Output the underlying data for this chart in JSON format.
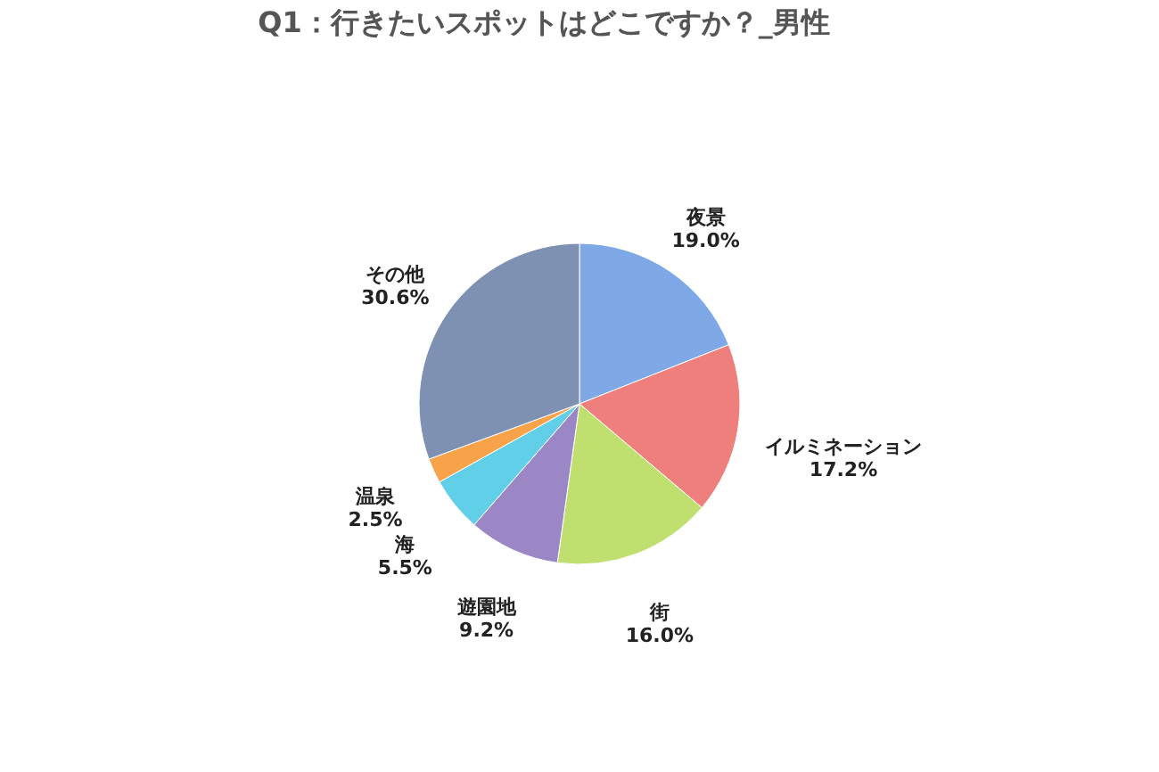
{
  "chart_data": {
    "type": "pie",
    "title": "Q1：行きたいスポットはどこですか？_男性",
    "categories": [
      "夜景",
      "イルミネーション",
      "街",
      "遊園地",
      "海",
      "温泉",
      "その他"
    ],
    "values": [
      19.0,
      17.2,
      16.0,
      9.2,
      5.5,
      2.5,
      30.6
    ],
    "value_labels": [
      "19.0%",
      "17.2%",
      "16.0%",
      "9.2%",
      "5.5%",
      "2.5%",
      "30.6%"
    ],
    "colors": [
      "#7ea9e6",
      "#ef7f7c",
      "#bfe06e",
      "#9b86c6",
      "#62cfe9",
      "#f8a24a",
      "#7f91b3"
    ],
    "legend": false
  }
}
